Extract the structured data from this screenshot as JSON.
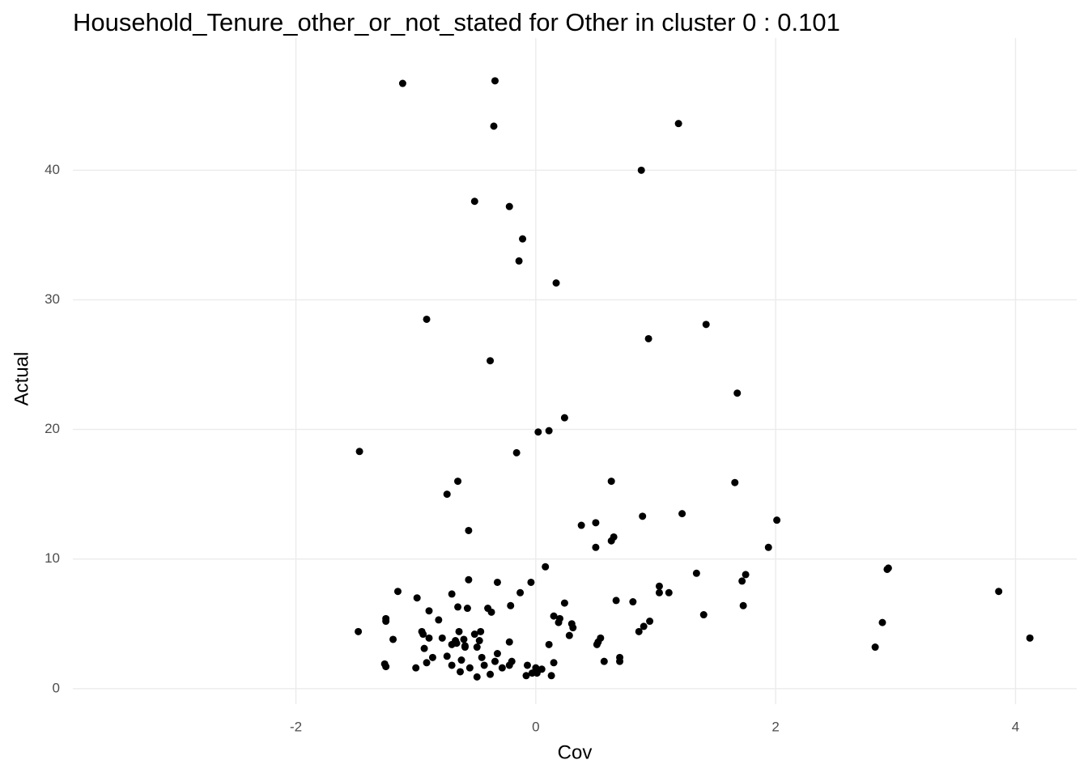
{
  "chart_data": {
    "type": "scatter",
    "title": "Household_Tenure_other_or_not_stated for Other in cluster 0 : 0.101",
    "x_label": "Cov",
    "y_label": "Actual",
    "color": "#000000",
    "grid": true,
    "xlim": [
      -3.86,
      4.51
    ],
    "ylim": [
      -1.2,
      50.2
    ],
    "xticks": [
      -2,
      0,
      2,
      4
    ],
    "yticks": [
      0,
      10,
      20,
      30,
      40
    ],
    "x": [
      -1.11,
      -0.34,
      -0.35,
      1.19,
      0.88,
      -0.51,
      -0.22,
      -0.11,
      -0.14,
      0.17,
      -0.91,
      1.42,
      0.94,
      -0.38,
      1.68,
      0.24,
      0.02,
      0.11,
      -1.47,
      -0.16,
      -0.65,
      0.63,
      1.66,
      -0.74,
      0.89,
      1.22,
      2.01,
      0.38,
      0.5,
      -0.56,
      0.65,
      0.63,
      0.5,
      1.94,
      0.08,
      2.94,
      2.93,
      1.34,
      1.75,
      1.72,
      -0.56,
      -0.32,
      -0.04,
      -1.15,
      1.03,
      3.86,
      1.03,
      1.11,
      -0.13,
      -0.7,
      -0.99,
      0.67,
      0.81,
      0.24,
      -0.21,
      1.73,
      -0.65,
      -0.57,
      -0.4,
      -0.37,
      -0.89,
      -1.25,
      -1.25,
      1.4,
      0.15,
      0.2,
      0.19,
      -0.81,
      0.95,
      0.3,
      2.89,
      0.31,
      0.9,
      0.86,
      -1.48,
      -0.95,
      -0.94,
      -0.64,
      -0.46,
      -0.51,
      0.28,
      0.54,
      4.12,
      -1.19,
      -0.89,
      -0.78,
      -0.67,
      -0.6,
      -0.47,
      -0.66,
      -0.7,
      0.52,
      -0.22,
      -0.59,
      -0.49,
      0.51,
      0.11,
      -0.93,
      2.83,
      -0.59,
      -0.32,
      -0.74,
      -0.86,
      -0.45,
      0.7,
      0.57,
      0.7,
      -0.91,
      -0.62,
      -0.2,
      -0.34,
      0.15,
      -1.26,
      -1.25,
      -0.7,
      -0.43,
      -0.22,
      -0.07,
      -1.0,
      -0.28,
      0.0,
      0.05,
      -0.55,
      -0.63,
      -0.03,
      0.01,
      -0.38,
      -0.49,
      -0.08,
      0.13
    ],
    "y": [
      46.7,
      46.9,
      43.4,
      43.6,
      40.0,
      37.6,
      37.2,
      34.7,
      33.0,
      31.3,
      28.5,
      28.1,
      27.0,
      25.3,
      22.8,
      20.9,
      19.8,
      19.9,
      18.3,
      18.2,
      16.0,
      16.0,
      15.9,
      15.0,
      13.3,
      13.5,
      13.0,
      12.6,
      12.8,
      12.2,
      11.7,
      11.4,
      10.9,
      10.9,
      9.4,
      9.3,
      9.2,
      8.9,
      8.8,
      8.3,
      8.4,
      8.2,
      8.2,
      7.5,
      7.9,
      7.5,
      7.4,
      7.4,
      7.4,
      7.3,
      7.0,
      6.8,
      6.7,
      6.6,
      6.4,
      6.4,
      6.3,
      6.2,
      6.2,
      5.9,
      6.0,
      5.4,
      5.2,
      5.7,
      5.6,
      5.4,
      5.1,
      5.3,
      5.2,
      5.0,
      5.1,
      4.7,
      4.8,
      4.4,
      4.4,
      4.4,
      4.2,
      4.4,
      4.4,
      4.2,
      4.1,
      3.9,
      3.9,
      3.8,
      3.9,
      3.9,
      3.7,
      3.8,
      3.7,
      3.5,
      3.4,
      3.6,
      3.6,
      3.3,
      3.2,
      3.4,
      3.4,
      3.1,
      3.2,
      3.2,
      2.7,
      2.5,
      2.4,
      2.4,
      2.4,
      2.1,
      2.1,
      2.0,
      2.2,
      2.1,
      2.1,
      2.0,
      1.9,
      1.7,
      1.8,
      1.8,
      1.8,
      1.8,
      1.6,
      1.6,
      1.6,
      1.5,
      1.6,
      1.3,
      1.2,
      1.2,
      1.1,
      0.9,
      1.0,
      1.0
    ]
  }
}
